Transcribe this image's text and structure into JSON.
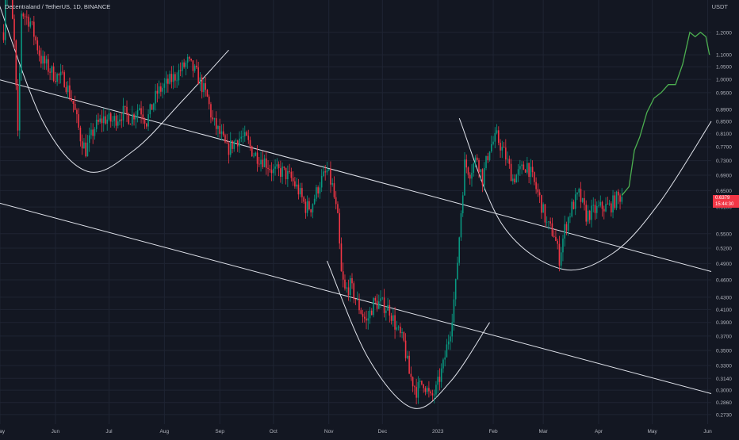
{
  "header": {
    "title": "Decentraland / TetherUS, 1D, BINANCE",
    "currency": "USDT"
  },
  "last_price": {
    "value": "0.6379",
    "countdown": "15:44:30"
  },
  "colors": {
    "background": "#131722",
    "grid": "#1f2433",
    "up": "#089981",
    "down": "#f23645",
    "projection": "#4caf50",
    "drawing": "#e0e3eb",
    "axis_text": "#b2b5be"
  },
  "chart_data": {
    "type": "candlestick",
    "title": "Decentraland / TetherUS, 1D, BINANCE",
    "y_scale": "log",
    "ylim": [
      0.263,
      1.36
    ],
    "y_ticks": [
      "1.2000",
      "1.1000",
      "1.0500",
      "1.0000",
      "0.9500",
      "0.8900",
      "0.8500",
      "0.8100",
      "0.7700",
      "0.7300",
      "0.6900",
      "0.6500",
      "0.6100",
      "0.5500",
      "0.5200",
      "0.4900",
      "0.4600",
      "0.4300",
      "0.4100",
      "0.3900",
      "0.3700",
      "0.3500",
      "0.3300",
      "0.3140",
      "0.3000",
      "0.2860",
      "0.2730"
    ],
    "x_range": [
      "2022-05-01",
      "2023-06-03"
    ],
    "x_ticks": [
      {
        "label": "May",
        "date": "2022-05-01"
      },
      {
        "label": "Jun",
        "date": "2022-06-01"
      },
      {
        "label": "Jul",
        "date": "2022-07-01"
      },
      {
        "label": "Aug",
        "date": "2022-08-01"
      },
      {
        "label": "Sep",
        "date": "2022-09-01"
      },
      {
        "label": "Oct",
        "date": "2022-10-01"
      },
      {
        "label": "Nov",
        "date": "2022-11-01"
      },
      {
        "label": "Dec",
        "date": "2022-12-01"
      },
      {
        "label": "2023",
        "date": "2023-01-01"
      },
      {
        "label": "Feb",
        "date": "2023-02-01"
      },
      {
        "label": "Mar",
        "date": "2023-03-01"
      },
      {
        "label": "Apr",
        "date": "2023-04-01"
      },
      {
        "label": "May",
        "date": "2023-05-01"
      },
      {
        "label": "Jun",
        "date": "2023-06-01"
      }
    ],
    "price_path": [
      {
        "date": "2022-05-03",
        "price": 1.2
      },
      {
        "date": "2022-05-05",
        "price": 1.6
      },
      {
        "date": "2022-05-09",
        "price": 1.15
      },
      {
        "date": "2022-05-11",
        "price": 0.8
      },
      {
        "date": "2022-05-13",
        "price": 1.3
      },
      {
        "date": "2022-05-18",
        "price": 1.25
      },
      {
        "date": "2022-05-24",
        "price": 1.08
      },
      {
        "date": "2022-05-31",
        "price": 1.02
      },
      {
        "date": "2022-06-06",
        "price": 1.0
      },
      {
        "date": "2022-06-11",
        "price": 0.91
      },
      {
        "date": "2022-06-15",
        "price": 0.8
      },
      {
        "date": "2022-06-18",
        "price": 0.76
      },
      {
        "date": "2022-06-23",
        "price": 0.83
      },
      {
        "date": "2022-06-28",
        "price": 0.86
      },
      {
        "date": "2022-07-03",
        "price": 0.85
      },
      {
        "date": "2022-07-09",
        "price": 0.88
      },
      {
        "date": "2022-07-13",
        "price": 0.86
      },
      {
        "date": "2022-07-18",
        "price": 0.9
      },
      {
        "date": "2022-07-22",
        "price": 0.85
      },
      {
        "date": "2022-07-28",
        "price": 0.95
      },
      {
        "date": "2022-08-02",
        "price": 0.98
      },
      {
        "date": "2022-08-08",
        "price": 1.02
      },
      {
        "date": "2022-08-14",
        "price": 1.07
      },
      {
        "date": "2022-08-19",
        "price": 1.02
      },
      {
        "date": "2022-08-25",
        "price": 0.93
      },
      {
        "date": "2022-08-28",
        "price": 0.85
      },
      {
        "date": "2022-09-02",
        "price": 0.8
      },
      {
        "date": "2022-09-05",
        "price": 0.76
      },
      {
        "date": "2022-09-10",
        "price": 0.79
      },
      {
        "date": "2022-09-13",
        "price": 0.8
      },
      {
        "date": "2022-09-16",
        "price": 0.79
      },
      {
        "date": "2022-09-20",
        "price": 0.75
      },
      {
        "date": "2022-09-26",
        "price": 0.73
      },
      {
        "date": "2022-10-01",
        "price": 0.7
      },
      {
        "date": "2022-10-06",
        "price": 0.7
      },
      {
        "date": "2022-10-11",
        "price": 0.68
      },
      {
        "date": "2022-10-15",
        "price": 0.65
      },
      {
        "date": "2022-10-19",
        "price": 0.61
      },
      {
        "date": "2022-10-22",
        "price": 0.61
      },
      {
        "date": "2022-10-27",
        "price": 0.67
      },
      {
        "date": "2022-10-31",
        "price": 0.7
      },
      {
        "date": "2022-11-03",
        "price": 0.66
      },
      {
        "date": "2022-11-06",
        "price": 0.58
      },
      {
        "date": "2022-11-08",
        "price": 0.47
      },
      {
        "date": "2022-11-10",
        "price": 0.44
      },
      {
        "date": "2022-11-13",
        "price": 0.45
      },
      {
        "date": "2022-11-17",
        "price": 0.42
      },
      {
        "date": "2022-11-22",
        "price": 0.39
      },
      {
        "date": "2022-11-26",
        "price": 0.42
      },
      {
        "date": "2022-11-30",
        "price": 0.42
      },
      {
        "date": "2022-12-05",
        "price": 0.41
      },
      {
        "date": "2022-12-09",
        "price": 0.38
      },
      {
        "date": "2022-12-13",
        "price": 0.36
      },
      {
        "date": "2022-12-16",
        "price": 0.32
      },
      {
        "date": "2022-12-20",
        "price": 0.3
      },
      {
        "date": "2022-12-24",
        "price": 0.31
      },
      {
        "date": "2022-12-28",
        "price": 0.29
      },
      {
        "date": "2022-12-31",
        "price": 0.3
      },
      {
        "date": "2023-01-04",
        "price": 0.33
      },
      {
        "date": "2023-01-08",
        "price": 0.38
      },
      {
        "date": "2023-01-11",
        "price": 0.45
      },
      {
        "date": "2023-01-14",
        "price": 0.6
      },
      {
        "date": "2023-01-16",
        "price": 0.72
      },
      {
        "date": "2023-01-19",
        "price": 0.7
      },
      {
        "date": "2023-01-23",
        "price": 0.74
      },
      {
        "date": "2023-01-26",
        "price": 0.68
      },
      {
        "date": "2023-01-30",
        "price": 0.77
      },
      {
        "date": "2023-02-03",
        "price": 0.8
      },
      {
        "date": "2023-02-08",
        "price": 0.74
      },
      {
        "date": "2023-02-12",
        "price": 0.68
      },
      {
        "date": "2023-02-16",
        "price": 0.7
      },
      {
        "date": "2023-02-20",
        "price": 0.72
      },
      {
        "date": "2023-02-23",
        "price": 0.68
      },
      {
        "date": "2023-02-27",
        "price": 0.63
      },
      {
        "date": "2023-03-03",
        "price": 0.57
      },
      {
        "date": "2023-03-07",
        "price": 0.55
      },
      {
        "date": "2023-03-10",
        "price": 0.5
      },
      {
        "date": "2023-03-13",
        "price": 0.56
      },
      {
        "date": "2023-03-17",
        "price": 0.61
      },
      {
        "date": "2023-03-21",
        "price": 0.64
      },
      {
        "date": "2023-03-25",
        "price": 0.59
      },
      {
        "date": "2023-03-29",
        "price": 0.6
      },
      {
        "date": "2023-04-03",
        "price": 0.61
      },
      {
        "date": "2023-04-07",
        "price": 0.61
      },
      {
        "date": "2023-04-11",
        "price": 0.63
      },
      {
        "date": "2023-04-14",
        "price": 0.638
      }
    ],
    "projection_path": [
      {
        "date": "2023-04-14",
        "price": 0.638
      },
      {
        "date": "2023-04-18",
        "price": 0.66
      },
      {
        "date": "2023-04-21",
        "price": 0.76
      },
      {
        "date": "2023-04-24",
        "price": 0.8
      },
      {
        "date": "2023-04-28",
        "price": 0.88
      },
      {
        "date": "2023-05-02",
        "price": 0.93
      },
      {
        "date": "2023-05-06",
        "price": 0.95
      },
      {
        "date": "2023-05-10",
        "price": 0.98
      },
      {
        "date": "2023-05-14",
        "price": 0.98
      },
      {
        "date": "2023-05-18",
        "price": 1.06
      },
      {
        "date": "2023-05-22",
        "price": 1.2
      },
      {
        "date": "2023-05-25",
        "price": 1.18
      },
      {
        "date": "2023-05-28",
        "price": 1.2
      },
      {
        "date": "2023-05-31",
        "price": 1.18
      },
      {
        "date": "2023-06-02",
        "price": 1.1
      }
    ],
    "drawings": {
      "trend_lines": [
        {
          "points": [
            {
              "date": "2022-04-30",
              "price": 1.0
            },
            {
              "date": "2023-06-03",
              "price": 0.475
            }
          ]
        },
        {
          "points": [
            {
              "date": "2022-04-30",
              "price": 0.62
            },
            {
              "date": "2023-06-03",
              "price": 0.296
            }
          ]
        }
      ],
      "cup_curves": [
        {
          "points": [
            {
              "date": "2022-04-30",
              "price": 1.35
            },
            {
              "date": "2022-05-25",
              "price": 0.85
            },
            {
              "date": "2022-06-19",
              "price": 0.7
            },
            {
              "date": "2022-07-15",
              "price": 0.76
            },
            {
              "date": "2022-08-11",
              "price": 0.92
            },
            {
              "date": "2022-09-06",
              "price": 1.12
            }
          ]
        },
        {
          "points": [
            {
              "date": "2022-10-31",
              "price": 0.495
            },
            {
              "date": "2022-11-23",
              "price": 0.34
            },
            {
              "date": "2022-12-18",
              "price": 0.28
            },
            {
              "date": "2023-01-08",
              "price": 0.31
            },
            {
              "date": "2023-01-30",
              "price": 0.39
            }
          ]
        },
        {
          "points": [
            {
              "date": "2023-01-13",
              "price": 0.86
            },
            {
              "date": "2023-02-06",
              "price": 0.57
            },
            {
              "date": "2023-03-11",
              "price": 0.48
            },
            {
              "date": "2023-04-09",
              "price": 0.51
            },
            {
              "date": "2023-05-05",
              "price": 0.62
            },
            {
              "date": "2023-06-03",
              "price": 0.85
            }
          ]
        }
      ]
    },
    "grid": true
  }
}
